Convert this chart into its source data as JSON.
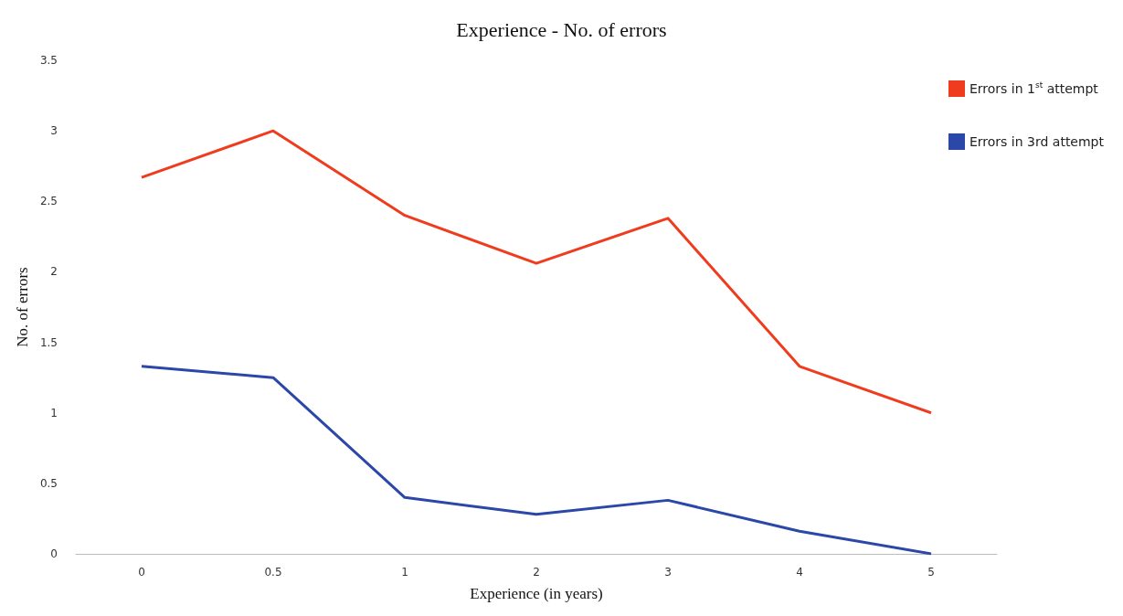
{
  "chart_data": {
    "type": "line",
    "title": "Experience - No. of errors",
    "xlabel": "Experience (in years)",
    "ylabel": "No. of errors",
    "categories": [
      "0",
      "0.5",
      "1",
      "2",
      "3",
      "4",
      "5"
    ],
    "series": [
      {
        "name": "Errors in 1$^{st}$ attempt",
        "color": "#f03c1e",
        "values": [
          2.67,
          3.0,
          2.4,
          2.06,
          2.38,
          1.33,
          1.0
        ]
      },
      {
        "name": "Errors in 3rd attempt",
        "color": "#2b47a8",
        "values": [
          1.33,
          1.25,
          0.4,
          0.28,
          0.38,
          0.16,
          0.0
        ]
      }
    ],
    "ylim": [
      0,
      3.5
    ],
    "yticks": [
      0,
      0.5,
      1,
      1.5,
      2,
      2.5,
      3,
      3.5
    ],
    "grid": false,
    "legend": "top right",
    "marker": "none",
    "line_style": "solid"
  }
}
